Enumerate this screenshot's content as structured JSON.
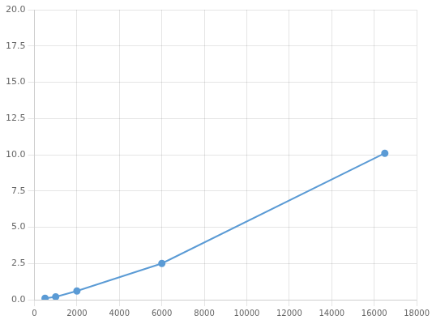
{
  "chart_data": {
    "type": "line",
    "x": [
      500,
      1000,
      2000,
      6000,
      16500
    ],
    "values": [
      0.1,
      0.2,
      0.6,
      2.5,
      10.1
    ],
    "color": "#5b9bd5",
    "marker": "circle",
    "xlim": [
      0,
      18000
    ],
    "xticks": [
      0,
      2000,
      4000,
      6000,
      8000,
      10000,
      12000,
      14000,
      16000,
      18000
    ],
    "ylim": [
      0,
      20.0
    ],
    "yticks": [
      {
        "value": 0,
        "label": "0.0"
      },
      2.5,
      {
        "value": 5,
        "label": "5.0"
      },
      7.5,
      {
        "value": 10,
        "label": "10.0"
      },
      12.5,
      {
        "value": 15,
        "label": "15.0"
      },
      17.5,
      {
        "value": 20,
        "label": "20.0"
      }
    ],
    "grid": true
  }
}
